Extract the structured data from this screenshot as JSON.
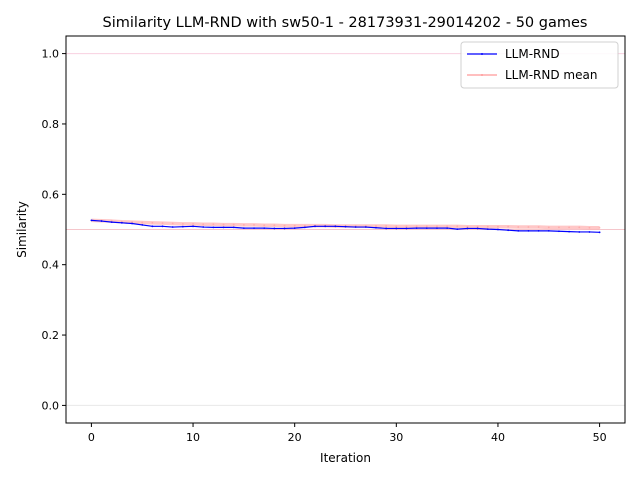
{
  "chart_data": {
    "type": "line",
    "title": "Similarity LLM-RND with sw50-1 - 28173931-29014202 - 50 games",
    "xlabel": "Iteration",
    "ylabel": "Similarity",
    "xlim": [
      -2.5,
      52.5
    ],
    "ylim": [
      -0.05,
      1.05
    ],
    "xticks": [
      0,
      10,
      20,
      30,
      40,
      50
    ],
    "yticks": [
      0.0,
      0.2,
      0.4,
      0.6,
      0.8,
      1.0
    ],
    "xtick_labels": [
      "0",
      "10",
      "20",
      "30",
      "40",
      "50"
    ],
    "ytick_labels": [
      "0.0",
      "0.2",
      "0.4",
      "0.6",
      "0.8",
      "1.0"
    ],
    "legend_position": "top-right",
    "reference_lines": [
      {
        "y": 0.0,
        "color": "#e8e8e8"
      },
      {
        "y": 0.5,
        "color": "#f5c6cb"
      },
      {
        "y": 1.0,
        "color": "#f8d0e0"
      }
    ],
    "x": [
      0,
      1,
      2,
      3,
      4,
      5,
      6,
      7,
      8,
      9,
      10,
      11,
      12,
      13,
      14,
      15,
      16,
      17,
      18,
      19,
      20,
      21,
      22,
      23,
      24,
      25,
      26,
      27,
      28,
      29,
      30,
      31,
      32,
      33,
      34,
      35,
      36,
      37,
      38,
      39,
      40,
      41,
      42,
      43,
      44,
      45,
      46,
      47,
      48,
      49,
      50
    ],
    "series": [
      {
        "name": "LLM-RND",
        "color": "#0000ff",
        "values": [
          0.526,
          0.524,
          0.521,
          0.519,
          0.517,
          0.513,
          0.509,
          0.509,
          0.507,
          0.508,
          0.509,
          0.507,
          0.506,
          0.506,
          0.506,
          0.504,
          0.504,
          0.504,
          0.503,
          0.503,
          0.504,
          0.506,
          0.509,
          0.509,
          0.509,
          0.508,
          0.507,
          0.507,
          0.505,
          0.503,
          0.503,
          0.503,
          0.504,
          0.504,
          0.504,
          0.504,
          0.501,
          0.503,
          0.503,
          0.501,
          0.5,
          0.498,
          0.496,
          0.496,
          0.496,
          0.496,
          0.495,
          0.494,
          0.493,
          0.493,
          0.492
        ]
      },
      {
        "name": "LLM-RND mean",
        "color": "#ff9999",
        "values": [
          0.526,
          0.525,
          0.524,
          0.522,
          0.521,
          0.52,
          0.519,
          0.518,
          0.517,
          0.516,
          0.516,
          0.515,
          0.515,
          0.514,
          0.514,
          0.513,
          0.513,
          0.512,
          0.512,
          0.511,
          0.511,
          0.511,
          0.511,
          0.511,
          0.51,
          0.51,
          0.51,
          0.51,
          0.51,
          0.51,
          0.509,
          0.509,
          0.509,
          0.509,
          0.509,
          0.509,
          0.509,
          0.508,
          0.508,
          0.508,
          0.508,
          0.508,
          0.507,
          0.507,
          0.507,
          0.506,
          0.506,
          0.506,
          0.506,
          0.505,
          0.505
        ]
      }
    ]
  }
}
